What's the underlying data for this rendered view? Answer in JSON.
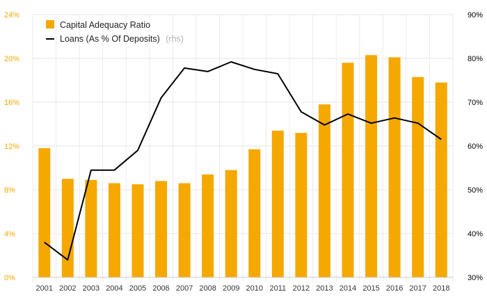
{
  "chart_data": {
    "type": "bar",
    "categories": [
      "2001",
      "2002",
      "2003",
      "2004",
      "2005",
      "2006",
      "2007",
      "2008",
      "2009",
      "2010",
      "2011",
      "2012",
      "2013",
      "2014",
      "2015",
      "2016",
      "2017",
      "2018"
    ],
    "series": [
      {
        "name": "Capital Adequacy Ratio",
        "type": "bar",
        "axis": "left",
        "color": "#f5a800",
        "values": [
          11.8,
          9.0,
          8.9,
          8.6,
          8.5,
          8.8,
          8.6,
          9.4,
          9.8,
          11.7,
          13.4,
          13.2,
          15.8,
          19.6,
          20.3,
          20.1,
          18.3,
          17.8
        ]
      },
      {
        "name": "Loans (As % Of Deposits)",
        "name_suffix": "(rhs)",
        "type": "line",
        "axis": "right",
        "color": "#000000",
        "values": [
          38.0,
          34.0,
          54.5,
          54.5,
          59.0,
          71.0,
          77.8,
          77.0,
          79.2,
          77.5,
          76.5,
          67.8,
          64.8,
          67.3,
          65.2,
          66.4,
          65.2,
          61.5
        ]
      }
    ],
    "y_left": {
      "ylim": [
        0,
        24
      ],
      "ticks": [
        0,
        4,
        8,
        12,
        16,
        20,
        24
      ],
      "tick_labels": [
        "0%",
        "4%",
        "8%",
        "12%",
        "16%",
        "20%",
        "24%"
      ],
      "color": "#f5a800"
    },
    "y_right": {
      "ylim": [
        30,
        90
      ],
      "ticks": [
        30,
        40,
        50,
        60,
        70,
        80,
        90
      ],
      "tick_labels": [
        "30%",
        "40%",
        "50%",
        "60%",
        "70%",
        "80%",
        "90%"
      ],
      "color": "#000000"
    },
    "grid": true,
    "legend_placement": "top-left"
  }
}
